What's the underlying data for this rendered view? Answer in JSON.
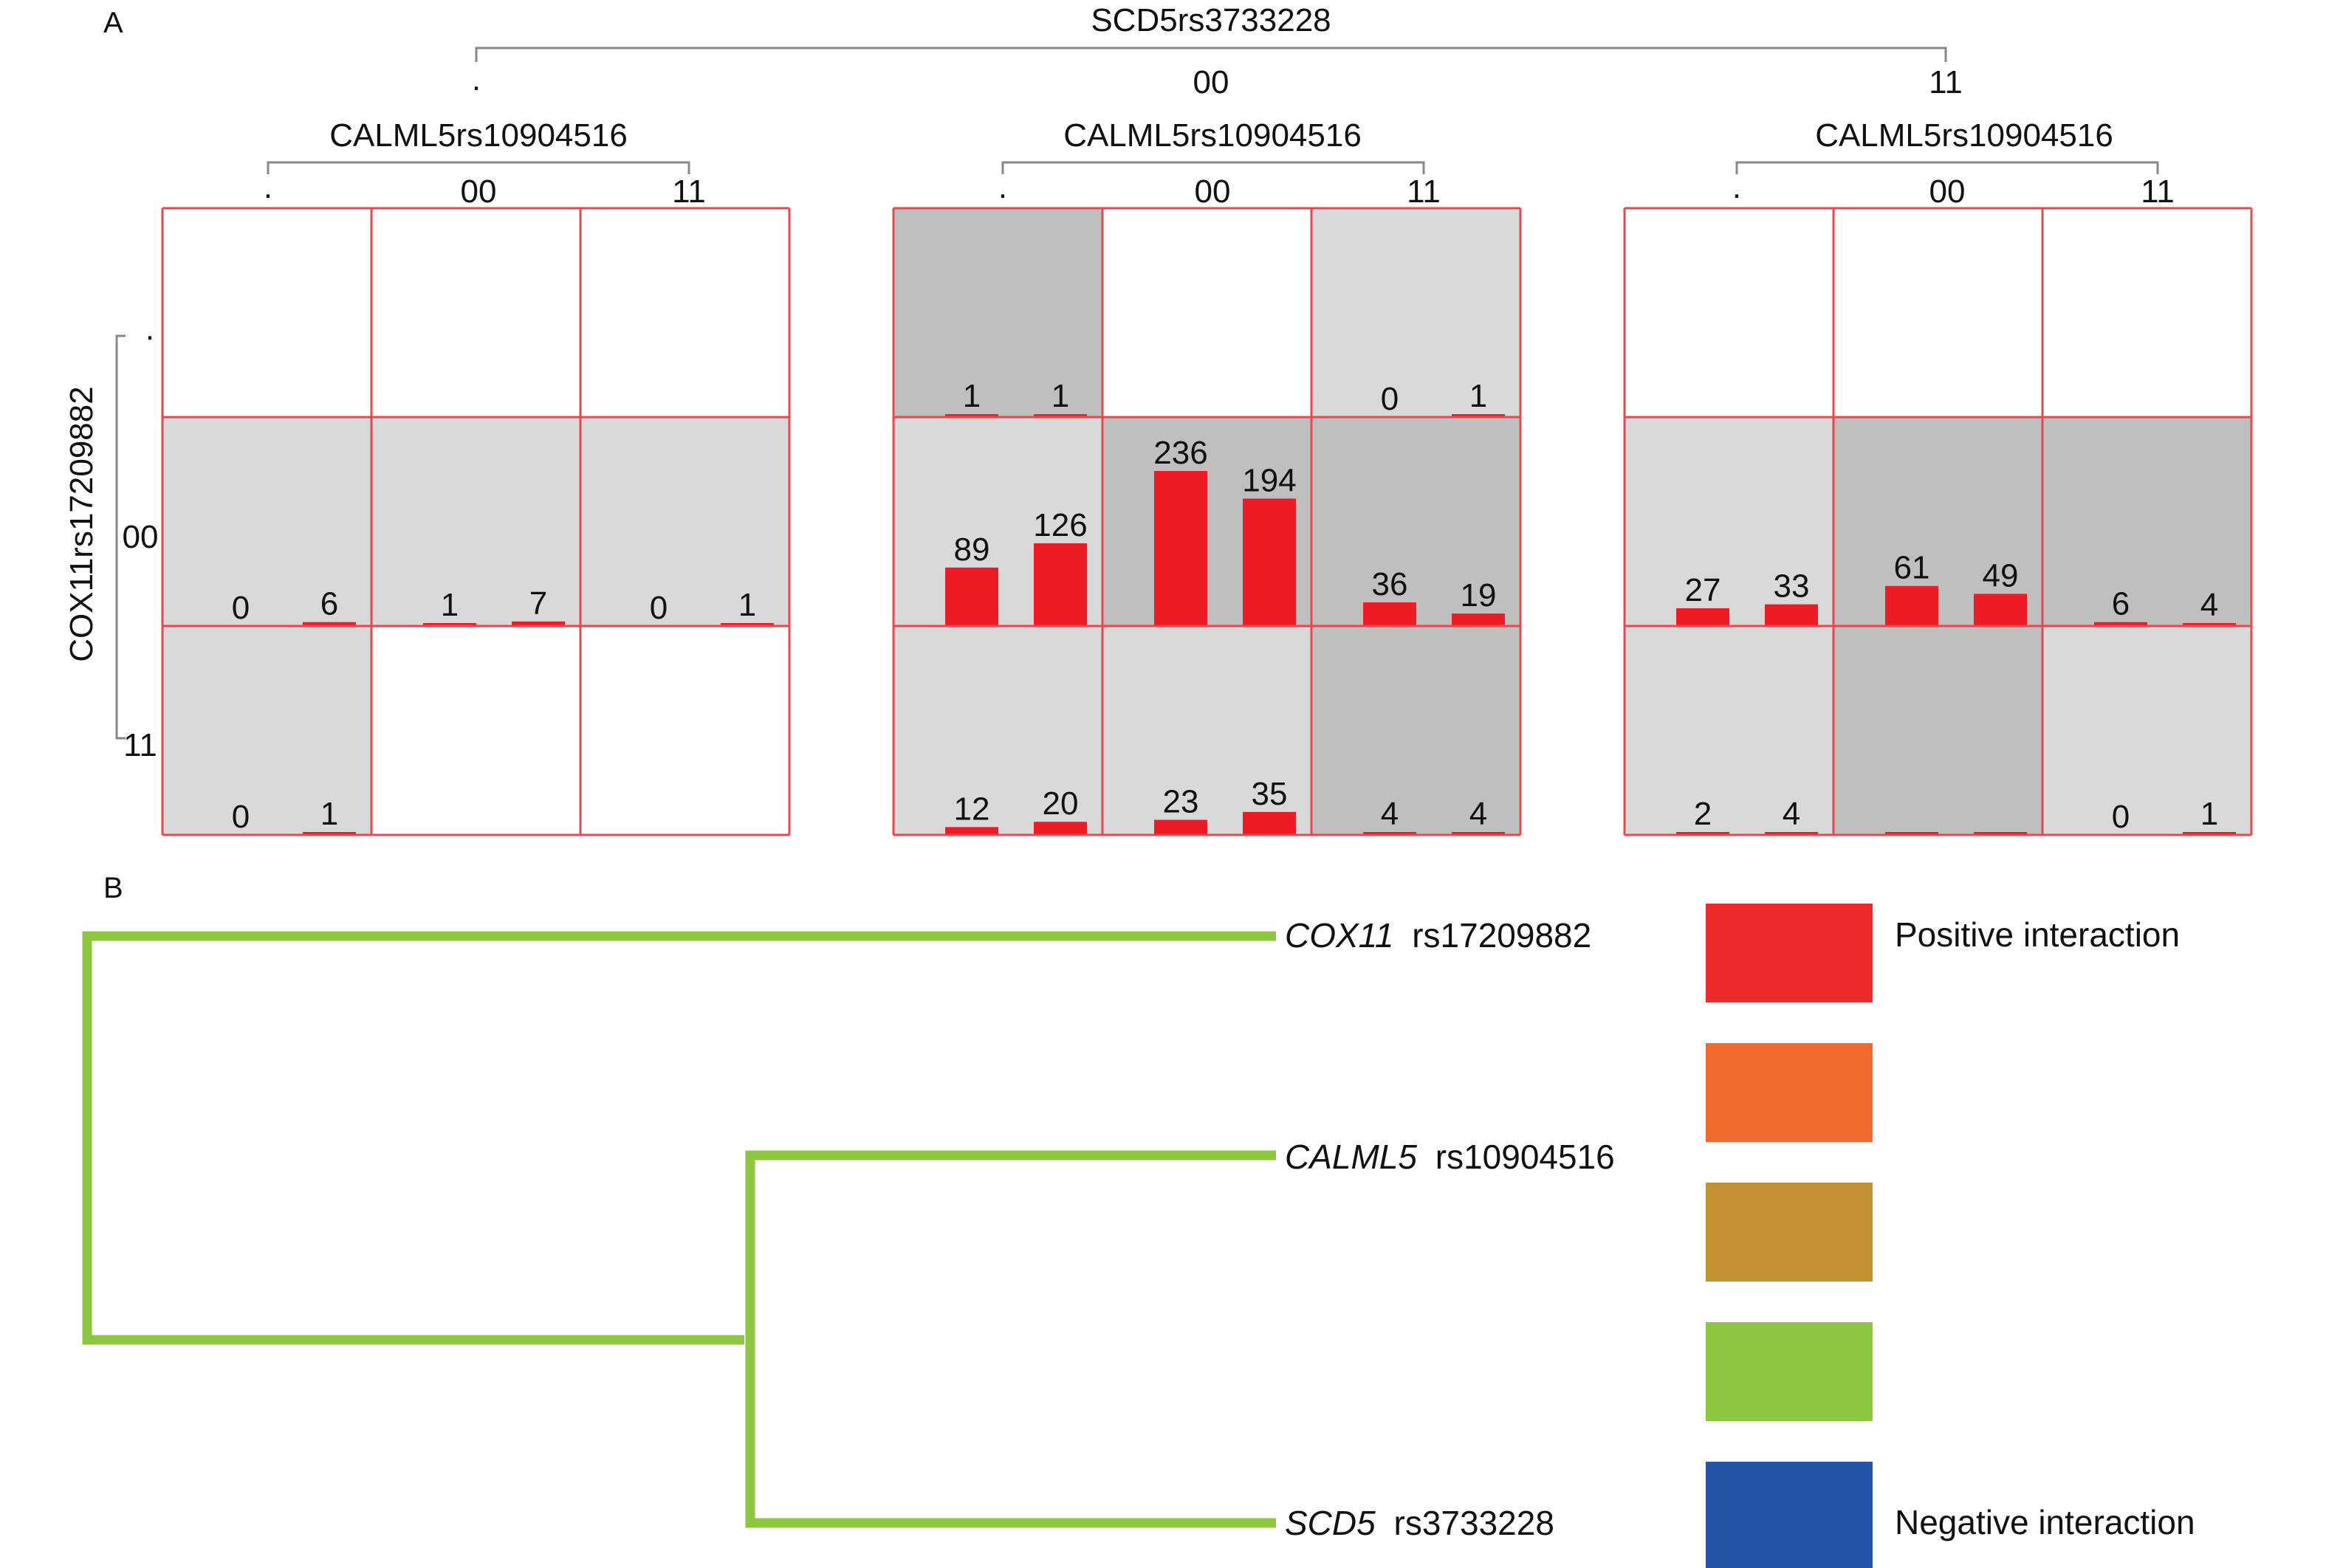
{
  "panel_a": {
    "letter": "A",
    "top_factor": {
      "name": "SCD5rs3733228",
      "levels": [
        ".",
        "00",
        "11"
      ]
    },
    "column_factor": {
      "name": "CALML5rs10904516",
      "levels": [
        ".",
        "00",
        "11"
      ]
    },
    "row_factor": {
      "name": "COX11rs17209882",
      "levels": [
        ".",
        "00",
        "11"
      ]
    },
    "colors": {
      "bar": "#ed1c24",
      "border": "#e8474f",
      "high": "#bfbfbf",
      "low": "#d9d9d9",
      "empty": "#ffffff"
    },
    "panels": [
      {
        "level": ".",
        "cells": [
          [
            {
              "shade": "empty",
              "values": null
            },
            {
              "shade": "empty",
              "values": null
            },
            {
              "shade": "empty",
              "values": null
            }
          ],
          [
            {
              "shade": "low",
              "values": [
                0,
                6
              ]
            },
            {
              "shade": "low",
              "values": [
                1,
                7
              ]
            },
            {
              "shade": "low",
              "values": [
                0,
                1
              ]
            }
          ],
          [
            {
              "shade": "low",
              "values": [
                0,
                1
              ]
            },
            {
              "shade": "empty",
              "values": null
            },
            {
              "shade": "empty",
              "values": null
            }
          ]
        ]
      },
      {
        "level": "00",
        "cells": [
          [
            {
              "shade": "high",
              "values": [
                1,
                1
              ]
            },
            {
              "shade": "empty",
              "values": null
            },
            {
              "shade": "low",
              "values": [
                0,
                1
              ]
            }
          ],
          [
            {
              "shade": "low",
              "values": [
                89,
                126
              ]
            },
            {
              "shade": "high",
              "values": [
                236,
                194
              ]
            },
            {
              "shade": "high",
              "values": [
                36,
                19
              ]
            }
          ],
          [
            {
              "shade": "low",
              "values": [
                12,
                20
              ]
            },
            {
              "shade": "low",
              "values": [
                23,
                35
              ]
            },
            {
              "shade": "high",
              "values": [
                4,
                4
              ]
            }
          ]
        ]
      },
      {
        "level": "11",
        "cells": [
          [
            {
              "shade": "empty",
              "values": null
            },
            {
              "shade": "empty",
              "values": null
            },
            {
              "shade": "empty",
              "values": null
            }
          ],
          [
            {
              "shade": "low",
              "values": [
                27,
                33
              ]
            },
            {
              "shade": "high",
              "values": [
                61,
                49
              ]
            },
            {
              "shade": "high",
              "values": [
                6,
                4
              ]
            }
          ],
          [
            {
              "shade": "low",
              "values": [
                2,
                4
              ]
            },
            {
              "shade": "high",
              "values": [
                3,
                1
              ],
              "show_labels": false
            },
            {
              "shade": "low",
              "values": [
                0,
                1
              ]
            }
          ]
        ]
      }
    ]
  },
  "panel_b": {
    "letter": "B",
    "tree_color": "#8dc63f",
    "leaves": [
      {
        "gene": "COX11",
        "snp": "rs17209882"
      },
      {
        "gene": "CALML5",
        "snp": "rs10904516"
      },
      {
        "gene": "SCD5",
        "snp": "rs3733228"
      }
    ],
    "legend": {
      "colors": [
        "#ed2b2b",
        "#f0692d",
        "#c49132",
        "#8dc63f",
        "#2355a6"
      ],
      "top_label": "Positive interaction",
      "bottom_label": "Negative interaction"
    }
  }
}
